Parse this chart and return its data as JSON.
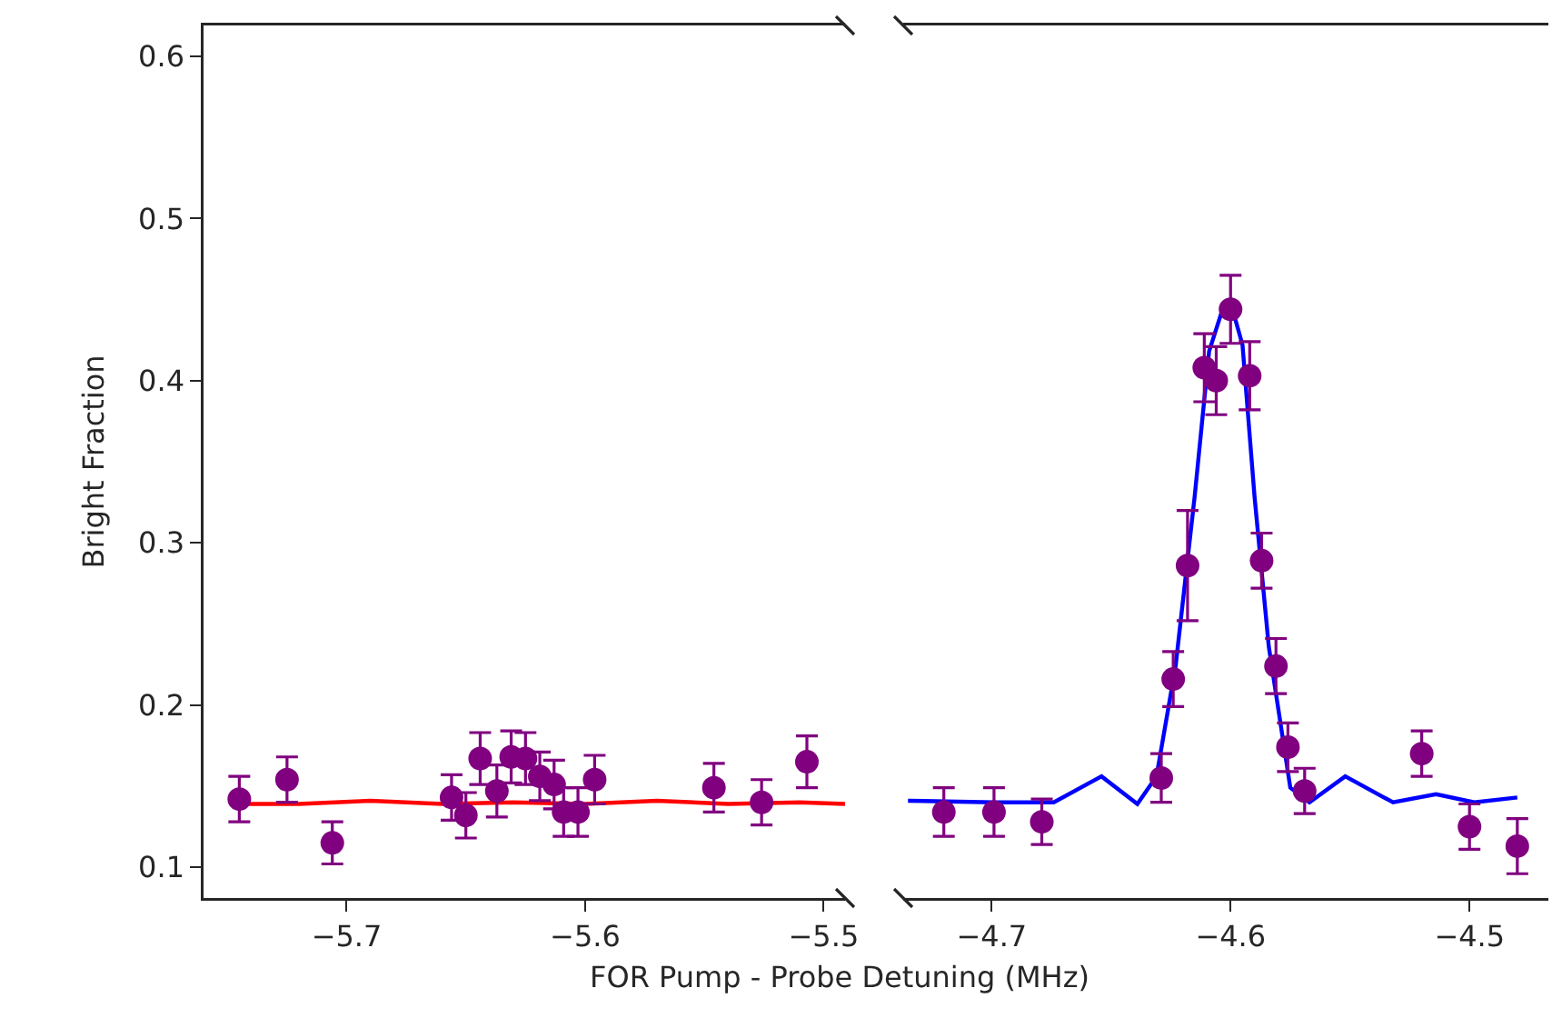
{
  "chart_data": [
    {
      "type": "scatter",
      "ylabel": "Bright Fraction",
      "xlabel": "FOR Pump - Probe Detuning (MHz)",
      "xlim": [
        -5.76,
        -5.491
      ],
      "xticks": [
        {
          "value": -5.7,
          "label": "−5.7"
        },
        {
          "value": -5.6,
          "label": "−5.6"
        },
        {
          "value": -5.5,
          "label": "−5.5"
        }
      ],
      "ylim": [
        0.081,
        0.619
      ],
      "yticks": [
        0.1,
        0.2,
        0.3,
        0.4,
        0.5,
        0.6
      ],
      "series": [
        {
          "type": "line",
          "marker": "none",
          "color": "#ff0000",
          "x": [
            -5.745,
            -5.72,
            -5.69,
            -5.66,
            -5.63,
            -5.6,
            -5.57,
            -5.54,
            -5.51,
            -5.491
          ],
          "values": [
            0.139,
            0.139,
            0.141,
            0.139,
            0.14,
            0.139,
            0.141,
            0.139,
            0.14,
            0.139
          ]
        },
        {
          "marker": "circle",
          "color": "#800080",
          "x": [
            -5.745,
            -5.725,
            -5.706,
            -5.656,
            -5.65,
            -5.644,
            -5.637,
            -5.631,
            -5.625,
            -5.619,
            -5.613,
            -5.609,
            -5.603,
            -5.596,
            -5.546,
            -5.526,
            -5.507
          ],
          "values": [
            0.142,
            0.154,
            0.115,
            0.143,
            0.132,
            0.167,
            0.147,
            0.168,
            0.167,
            0.156,
            0.151,
            0.134,
            0.134,
            0.154,
            0.149,
            0.14,
            0.165
          ],
          "errors": [
            0.014,
            0.014,
            0.013,
            0.014,
            0.014,
            0.016,
            0.016,
            0.016,
            0.016,
            0.015,
            0.015,
            0.015,
            0.015,
            0.015,
            0.015,
            0.014,
            0.016
          ]
        }
      ]
    },
    {
      "type": "scatter",
      "xlim": [
        -4.737,
        -4.467
      ],
      "xticks": [
        {
          "value": -4.7,
          "label": "−4.7"
        },
        {
          "value": -4.6,
          "label": "−4.6"
        },
        {
          "value": -4.5,
          "label": "−4.5"
        }
      ],
      "ylim": [
        0.081,
        0.619
      ],
      "tick_labels": "x",
      "series": [
        {
          "type": "line",
          "marker": "none",
          "color": "#0000ff",
          "x": [
            -4.735,
            -4.699,
            -4.674,
            -4.654,
            -4.639,
            -4.631,
            -4.623,
            -4.615,
            -4.609,
            -4.604,
            -4.599,
            -4.595,
            -4.59,
            -4.584,
            -4.575,
            -4.567,
            -4.552,
            -4.532,
            -4.514,
            -4.498,
            -4.48
          ],
          "values": [
            0.141,
            0.14,
            0.14,
            0.156,
            0.139,
            0.156,
            0.224,
            0.329,
            0.418,
            0.441,
            0.443,
            0.422,
            0.329,
            0.236,
            0.149,
            0.14,
            0.156,
            0.14,
            0.145,
            0.14,
            0.143
          ]
        },
        {
          "marker": "circle",
          "color": "#800080",
          "x": [
            -4.72,
            -4.699,
            -4.679,
            -4.629,
            -4.624,
            -4.618,
            -4.611,
            -4.606,
            -4.6,
            -4.592,
            -4.587,
            -4.581,
            -4.576,
            -4.569,
            -4.52,
            -4.5,
            -4.48
          ],
          "values": [
            0.134,
            0.134,
            0.128,
            0.155,
            0.216,
            0.286,
            0.408,
            0.4,
            0.444,
            0.403,
            0.289,
            0.224,
            0.174,
            0.147,
            0.17,
            0.125,
            0.113
          ],
          "errors": [
            0.015,
            0.015,
            0.014,
            0.015,
            0.017,
            0.034,
            0.021,
            0.021,
            0.021,
            0.021,
            0.017,
            0.017,
            0.015,
            0.014,
            0.014,
            0.014,
            0.017
          ]
        }
      ]
    }
  ]
}
